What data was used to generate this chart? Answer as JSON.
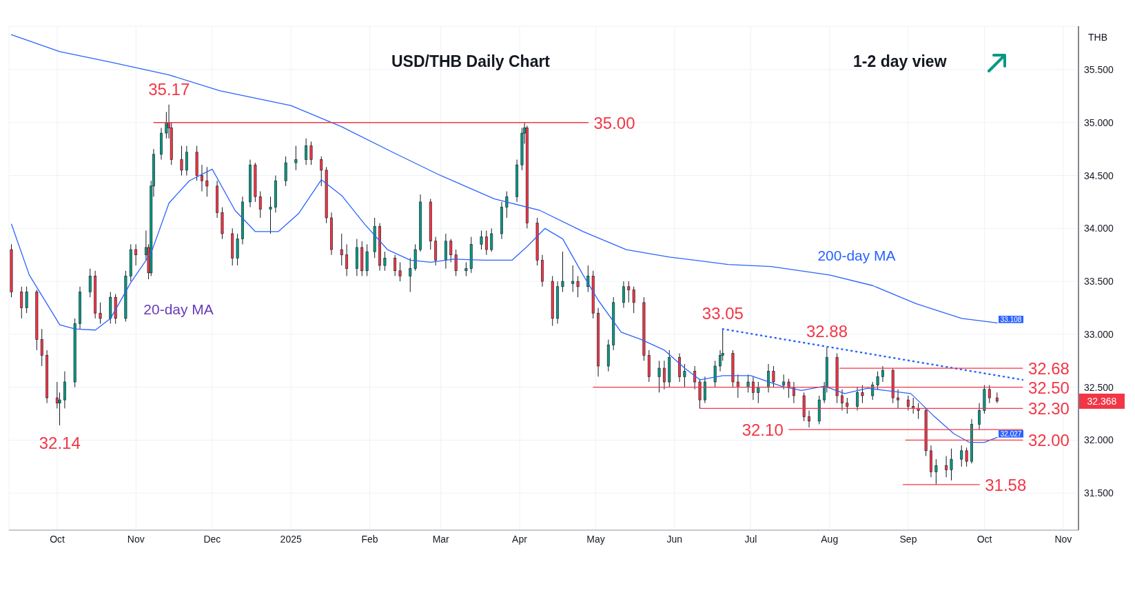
{
  "chart_data": {
    "type": "candlestick",
    "title": "USD/THB Daily Chart",
    "ylabel": "THB",
    "annotations": [
      "1-2 day view",
      {
        "text": "35.17",
        "x": "2024-11-14",
        "y": 35.17
      },
      {
        "text": "32.14",
        "x": "2024-10-02",
        "y": 32.14
      },
      {
        "text": "35.00",
        "x": "2025-04-28",
        "y": 35.0
      },
      {
        "text": "33.05",
        "x": "2025-06-20",
        "y": 33.05
      },
      {
        "text": "32.88",
        "x": "2025-07-31",
        "y": 32.88
      },
      {
        "text": "32.68",
        "x": "2025-10-16",
        "y": 32.68
      },
      {
        "text": "32.50",
        "x": "2025-10-16",
        "y": 32.5
      },
      {
        "text": "32.30",
        "x": "2025-10-16",
        "y": 32.3
      },
      {
        "text": "32.10",
        "x": "2025-07-16",
        "y": 32.1
      },
      {
        "text": "32.00",
        "x": "2025-10-16",
        "y": 32.0
      },
      {
        "text": "31.58",
        "x": "2025-09-29",
        "y": 31.58
      }
    ],
    "value_labels": [
      null,
      null,
      null,
      null,
      null,
      null,
      null,
      null,
      null,
      null,
      null,
      null,
      null,
      null,
      null,
      null,
      null,
      null,
      null,
      null,
      null,
      null,
      null,
      null,
      null,
      null,
      null,
      null,
      null,
      null,
      null,
      null,
      null,
      null,
      null,
      null,
      null,
      null,
      null,
      null,
      null,
      null,
      null,
      null,
      null,
      null,
      null,
      null,
      null,
      null,
      null,
      null,
      null,
      null,
      null,
      null,
      null,
      null,
      null,
      null,
      null,
      null,
      null,
      null,
      null,
      null,
      null,
      null,
      null,
      null,
      null,
      null,
      null,
      null,
      null,
      null,
      null,
      null,
      null,
      null,
      null,
      null,
      null,
      null,
      null,
      null,
      null,
      null,
      null,
      null,
      null,
      null,
      null,
      null,
      null,
      null,
      null,
      null,
      null,
      null,
      null,
      null,
      null,
      null,
      null,
      null,
      null,
      null,
      null,
      null,
      null,
      null,
      null,
      null,
      null,
      null,
      null,
      null,
      null,
      null,
      null,
      null,
      null,
      null,
      null,
      null,
      null,
      null,
      null,
      null,
      null,
      null,
      null,
      null,
      null,
      null,
      null,
      null,
      null,
      null,
      null,
      null,
      null,
      null,
      null,
      "32.368"
    ],
    "x": [
      "2024-09-13",
      "2024-09-17",
      "2024-09-19",
      "2024-09-23",
      "2024-09-25",
      "2024-09-27",
      "2024-10-01",
      "2024-10-02",
      "2024-10-04",
      "2024-10-08",
      "2024-10-10",
      "2024-10-14",
      "2024-10-16",
      "2024-10-18",
      "2024-10-22",
      "2024-10-24",
      "2024-10-28",
      "2024-10-30",
      "2024-11-01",
      "2024-11-05",
      "2024-11-06",
      "2024-11-07",
      "2024-11-08",
      "2024-11-11",
      "2024-11-13",
      "2024-11-14",
      "2024-11-15",
      "2024-11-19",
      "2024-11-21",
      "2024-11-25",
      "2024-11-27",
      "2024-11-29",
      "2024-12-03",
      "2024-12-05",
      "2024-12-09",
      "2024-12-11",
      "2024-12-13",
      "2024-12-16",
      "2024-12-18",
      "2024-12-20",
      "2024-12-24",
      "2024-12-26",
      "2024-12-30",
      "2025-01-03",
      "2025-01-07",
      "2025-01-09",
      "2025-01-13",
      "2025-01-15",
      "2025-01-17",
      "2025-01-21",
      "2025-01-23",
      "2025-01-27",
      "2025-01-29",
      "2025-01-31",
      "2025-02-03",
      "2025-02-05",
      "2025-02-07",
      "2025-02-11",
      "2025-02-13",
      "2025-02-17",
      "2025-02-19",
      "2025-02-21",
      "2025-02-25",
      "2025-02-27",
      "2025-03-03",
      "2025-03-05",
      "2025-03-07",
      "2025-03-11",
      "2025-03-13",
      "2025-03-17",
      "2025-03-19",
      "2025-03-21",
      "2025-03-25",
      "2025-03-27",
      "2025-03-31",
      "2025-04-02",
      "2025-04-03",
      "2025-04-04",
      "2025-04-08",
      "2025-04-10",
      "2025-04-14",
      "2025-04-16",
      "2025-04-18",
      "2025-04-22",
      "2025-04-24",
      "2025-04-28",
      "2025-04-30",
      "2025-05-02",
      "2025-05-06",
      "2025-05-08",
      "2025-05-12",
      "2025-05-14",
      "2025-05-16",
      "2025-05-20",
      "2025-05-22",
      "2025-05-26",
      "2025-05-28",
      "2025-05-30",
      "2025-06-03",
      "2025-06-05",
      "2025-06-09",
      "2025-06-11",
      "2025-06-13",
      "2025-06-17",
      "2025-06-19",
      "2025-06-20",
      "2025-06-24",
      "2025-06-26",
      "2025-06-30",
      "2025-07-02",
      "2025-07-04",
      "2025-07-08",
      "2025-07-10",
      "2025-07-14",
      "2025-07-16",
      "2025-07-18",
      "2025-07-22",
      "2025-07-24",
      "2025-07-28",
      "2025-07-30",
      "2025-07-31",
      "2025-08-04",
      "2025-08-06",
      "2025-08-08",
      "2025-08-12",
      "2025-08-14",
      "2025-08-18",
      "2025-08-20",
      "2025-08-22",
      "2025-08-26",
      "2025-08-28",
      "2025-09-01",
      "2025-09-03",
      "2025-09-05",
      "2025-09-08",
      "2025-09-10",
      "2025-09-12",
      "2025-09-16",
      "2025-09-18",
      "2025-09-22",
      "2025-09-24",
      "2025-09-26",
      "2025-09-29",
      "2025-10-01",
      "2025-10-03",
      "2025-10-06"
    ],
    "ohlc": [
      [
        33.8,
        33.85,
        33.35,
        33.4
      ],
      [
        33.4,
        33.45,
        33.15,
        33.25
      ],
      [
        33.25,
        33.45,
        33.2,
        33.4
      ],
      [
        33.4,
        33.42,
        32.85,
        32.95
      ],
      [
        32.95,
        33.05,
        32.7,
        32.8
      ],
      [
        32.8,
        32.85,
        32.35,
        32.4
      ],
      [
        32.4,
        32.55,
        32.3,
        32.35
      ],
      [
        32.35,
        32.45,
        32.14,
        32.38
      ],
      [
        32.38,
        32.65,
        32.3,
        32.55
      ],
      [
        32.55,
        33.15,
        32.5,
        33.1
      ],
      [
        33.1,
        33.45,
        33.05,
        33.4
      ],
      [
        33.4,
        33.62,
        33.35,
        33.55
      ],
      [
        33.55,
        33.6,
        33.15,
        33.2
      ],
      [
        33.2,
        33.3,
        33.1,
        33.15
      ],
      [
        33.15,
        33.4,
        33.1,
        33.35
      ],
      [
        33.35,
        33.38,
        33.1,
        33.15
      ],
      [
        33.15,
        33.6,
        33.12,
        33.55
      ],
      [
        33.55,
        33.85,
        33.5,
        33.8
      ],
      [
        33.8,
        33.85,
        33.65,
        33.75
      ],
      [
        33.75,
        33.98,
        33.7,
        33.82
      ],
      [
        33.82,
        33.85,
        33.52,
        33.58
      ],
      [
        33.58,
        34.45,
        33.55,
        34.4
      ],
      [
        34.4,
        34.75,
        34.3,
        34.7
      ],
      [
        34.7,
        34.95,
        34.65,
        34.9
      ],
      [
        34.9,
        35.1,
        34.85,
        35.0
      ],
      [
        35.0,
        35.17,
        34.85,
        34.95
      ],
      [
        34.95,
        35.0,
        34.6,
        34.65
      ],
      [
        34.65,
        34.78,
        34.5,
        34.55
      ],
      [
        34.55,
        34.78,
        34.5,
        34.72
      ],
      [
        34.72,
        34.78,
        34.45,
        34.5
      ],
      [
        34.5,
        34.6,
        34.35,
        34.45
      ],
      [
        34.45,
        34.58,
        34.3,
        34.4
      ],
      [
        34.4,
        34.45,
        34.1,
        34.15
      ],
      [
        34.15,
        34.2,
        33.9,
        33.95
      ],
      [
        33.95,
        34.0,
        33.65,
        33.72
      ],
      [
        33.72,
        33.95,
        33.65,
        33.9
      ],
      [
        33.9,
        34.3,
        33.85,
        34.25
      ],
      [
        34.25,
        34.65,
        34.2,
        34.6
      ],
      [
        34.6,
        34.62,
        34.25,
        34.3
      ],
      [
        34.3,
        34.35,
        34.1,
        34.18
      ],
      [
        34.18,
        34.3,
        33.95,
        34.2
      ],
      [
        34.2,
        34.5,
        34.15,
        34.45
      ],
      [
        34.45,
        34.68,
        34.4,
        34.62
      ],
      [
        34.62,
        34.78,
        34.55,
        34.65
      ],
      [
        34.65,
        34.85,
        34.6,
        34.78
      ],
      [
        34.78,
        34.82,
        34.6,
        34.65
      ],
      [
        34.65,
        34.68,
        34.4,
        34.55
      ],
      [
        34.55,
        34.58,
        34.05,
        34.1
      ],
      [
        34.1,
        34.15,
        33.75,
        33.8
      ],
      [
        33.8,
        33.95,
        33.65,
        33.75
      ],
      [
        33.75,
        33.85,
        33.55,
        33.62
      ],
      [
        33.62,
        33.9,
        33.55,
        33.82
      ],
      [
        33.82,
        33.88,
        33.55,
        33.6
      ],
      [
        33.6,
        33.85,
        33.55,
        33.78
      ],
      [
        33.78,
        34.1,
        33.72,
        34.02
      ],
      [
        34.02,
        34.05,
        33.6,
        33.65
      ],
      [
        33.65,
        33.78,
        33.6,
        33.72
      ],
      [
        33.72,
        33.75,
        33.55,
        33.6
      ],
      [
        33.6,
        33.68,
        33.5,
        33.55
      ],
      [
        33.55,
        33.72,
        33.4,
        33.62
      ],
      [
        33.62,
        33.85,
        33.6,
        33.8
      ],
      [
        33.8,
        34.32,
        33.78,
        34.25
      ],
      [
        34.25,
        34.28,
        33.8,
        33.88
      ],
      [
        33.88,
        33.92,
        33.65,
        33.7
      ],
      [
        33.7,
        33.95,
        33.62,
        33.88
      ],
      [
        33.88,
        33.9,
        33.68,
        33.75
      ],
      [
        33.75,
        33.8,
        33.55,
        33.6
      ],
      [
        33.6,
        33.68,
        33.55,
        33.62
      ],
      [
        33.62,
        33.92,
        33.58,
        33.85
      ],
      [
        33.85,
        33.98,
        33.8,
        33.92
      ],
      [
        33.92,
        33.98,
        33.75,
        33.8
      ],
      [
        33.8,
        34.0,
        33.78,
        33.95
      ],
      [
        33.95,
        34.25,
        33.9,
        34.2
      ],
      [
        34.2,
        34.35,
        34.1,
        34.3
      ],
      [
        34.3,
        34.65,
        34.25,
        34.6
      ],
      [
        34.6,
        34.95,
        34.55,
        34.9
      ],
      [
        34.9,
        35.0,
        34.8,
        34.95
      ],
      [
        34.95,
        34.97,
        34.0,
        34.05
      ],
      [
        34.05,
        34.1,
        33.65,
        33.7
      ],
      [
        33.7,
        33.75,
        33.45,
        33.5
      ],
      [
        33.5,
        33.55,
        33.08,
        33.15
      ],
      [
        33.15,
        33.5,
        33.1,
        33.45
      ],
      [
        33.45,
        33.78,
        33.4,
        33.5
      ],
      [
        33.48,
        33.65,
        33.4,
        33.5
      ],
      [
        33.5,
        33.55,
        33.35,
        33.45
      ],
      [
        33.45,
        33.65,
        33.4,
        33.55
      ],
      [
        33.55,
        33.6,
        33.15,
        33.2
      ],
      [
        33.2,
        33.25,
        32.6,
        32.7
      ],
      [
        32.7,
        32.95,
        32.65,
        32.9
      ],
      [
        32.9,
        33.35,
        32.85,
        33.3
      ],
      [
        33.3,
        33.5,
        33.25,
        33.45
      ],
      [
        33.45,
        33.5,
        33.3,
        33.42
      ],
      [
        33.42,
        33.45,
        33.2,
        33.3
      ],
      [
        33.3,
        33.35,
        32.75,
        32.8
      ],
      [
        32.8,
        32.85,
        32.55,
        32.6
      ],
      [
        32.6,
        32.75,
        32.45,
        32.68
      ],
      [
        32.68,
        32.75,
        32.48,
        32.55
      ],
      [
        32.55,
        32.85,
        32.5,
        32.78
      ],
      [
        32.78,
        32.82,
        32.55,
        32.6
      ],
      [
        32.6,
        32.72,
        32.5,
        32.65
      ],
      [
        32.65,
        32.7,
        32.48,
        32.55
      ],
      [
        32.55,
        32.58,
        32.3,
        32.38
      ],
      [
        32.38,
        32.6,
        32.35,
        32.55
      ],
      [
        32.55,
        32.75,
        32.5,
        32.7
      ],
      [
        32.7,
        32.85,
        32.65,
        32.8
      ],
      [
        32.8,
        33.05,
        32.75,
        32.82
      ],
      [
        32.82,
        32.85,
        32.5,
        32.55
      ],
      [
        32.55,
        32.62,
        32.4,
        32.5
      ],
      [
        32.5,
        32.62,
        32.45,
        32.55
      ],
      [
        32.55,
        32.6,
        32.38,
        32.45
      ],
      [
        32.45,
        32.55,
        32.35,
        32.5
      ],
      [
        32.5,
        32.72,
        32.45,
        32.65
      ],
      [
        32.65,
        32.7,
        32.5,
        32.55
      ],
      [
        32.52,
        32.62,
        32.48,
        32.55
      ],
      [
        32.55,
        32.58,
        32.4,
        32.5
      ],
      [
        32.5,
        32.55,
        32.35,
        32.42
      ],
      [
        32.42,
        32.45,
        32.18,
        32.22
      ],
      [
        32.22,
        32.28,
        32.12,
        32.18
      ],
      [
        32.18,
        32.42,
        32.15,
        32.38
      ],
      [
        32.38,
        32.55,
        32.35,
        32.5
      ],
      [
        32.5,
        32.88,
        32.45,
        32.78
      ],
      [
        32.78,
        32.82,
        32.35,
        32.42
      ],
      [
        32.42,
        32.48,
        32.28,
        32.35
      ],
      [
        32.35,
        32.4,
        32.25,
        32.32
      ],
      [
        32.32,
        32.5,
        32.28,
        32.45
      ],
      [
        32.45,
        32.52,
        32.35,
        32.42
      ],
      [
        32.42,
        32.55,
        32.38,
        32.52
      ],
      [
        32.52,
        32.65,
        32.48,
        32.6
      ],
      [
        32.6,
        32.7,
        32.55,
        32.66
      ],
      [
        32.66,
        32.68,
        32.35,
        32.4
      ],
      [
        32.4,
        32.48,
        32.3,
        32.38
      ],
      [
        32.38,
        32.42,
        32.28,
        32.32
      ],
      [
        32.32,
        32.4,
        32.25,
        32.3
      ],
      [
        32.3,
        32.35,
        32.2,
        32.28
      ],
      [
        32.28,
        32.3,
        31.85,
        31.9
      ],
      [
        31.9,
        31.95,
        31.65,
        31.7
      ],
      [
        31.7,
        31.82,
        31.58,
        31.76
      ],
      [
        31.76,
        31.85,
        31.65,
        31.72
      ],
      [
        31.72,
        31.92,
        31.62,
        31.82
      ],
      [
        31.82,
        31.95,
        31.75,
        31.9
      ],
      [
        31.9,
        31.93,
        31.75,
        31.8
      ],
      [
        31.8,
        32.2,
        31.78,
        32.15
      ],
      [
        32.15,
        32.35,
        32.1,
        32.28
      ],
      [
        32.28,
        32.52,
        32.25,
        32.48
      ],
      [
        32.48,
        32.52,
        32.35,
        32.4
      ],
      [
        32.4,
        32.45,
        32.35,
        32.368
      ]
    ],
    "colors": [
      "#f23645",
      "#f23645",
      "#089981",
      "#f23645",
      "#f23645",
      "#f23645",
      "#f23645",
      "#089981",
      "#089981",
      "#089981",
      "#089981",
      "#089981",
      "#f23645",
      "#f23645",
      "#089981",
      "#f23645",
      "#089981",
      "#089981",
      "#f23645",
      "#089981",
      "#f23645",
      "#089981",
      "#089981",
      "#089981",
      "#089981",
      "#f23645",
      "#f23645",
      "#f23645",
      "#089981",
      "#f23645",
      "#f23645",
      "#f23645",
      "#f23645",
      "#f23645",
      "#f23645",
      "#089981",
      "#089981",
      "#089981",
      "#f23645",
      "#f23645",
      "#089981",
      "#089981",
      "#089981",
      "#089981",
      "#089981",
      "#f23645",
      "#f23645",
      "#f23645",
      "#f23645",
      "#f23645",
      "#f23645",
      "#089981",
      "#f23645",
      "#089981",
      "#089981",
      "#f23645",
      "#089981",
      "#f23645",
      "#f23645",
      "#089981",
      "#089981",
      "#089981",
      "#f23645",
      "#f23645",
      "#089981",
      "#f23645",
      "#f23645",
      "#089981",
      "#089981",
      "#089981",
      "#f23645",
      "#089981",
      "#089981",
      "#089981",
      "#089981",
      "#089981",
      "#089981",
      "#f23645",
      "#f23645",
      "#f23645",
      "#f23645",
      "#089981",
      "#089981",
      "#089981",
      "#f23645",
      "#089981",
      "#f23645",
      "#f23645",
      "#089981",
      "#089981",
      "#089981",
      "#f23645",
      "#f23645",
      "#f23645",
      "#f23645",
      "#089981",
      "#f23645",
      "#089981",
      "#f23645",
      "#089981",
      "#f23645",
      "#f23645",
      "#089981",
      "#089981",
      "#089981",
      "#089981",
      "#f23645",
      "#f23645",
      "#089981",
      "#f23645",
      "#089981",
      "#089981",
      "#f23645",
      "#089981",
      "#f23645",
      "#f23645",
      "#f23645",
      "#f23645",
      "#089981",
      "#089981",
      "#089981",
      "#f23645",
      "#f23645",
      "#f23645",
      "#089981",
      "#f23645",
      "#089981",
      "#089981",
      "#089981",
      "#f23645",
      "#f23645",
      "#f23645",
      "#f23645",
      "#f23645",
      "#f23645",
      "#f23645",
      "#089981",
      "#f23645",
      "#089981",
      "#089981",
      "#f23645",
      "#089981",
      "#089981",
      "#089981",
      "#f23645",
      "#f23645"
    ],
    "series": [
      {
        "type": "line",
        "name": "200-day MA",
        "color": "#2962ff",
        "x": [
          "2024-09-13",
          "2024-10-02",
          "2024-10-22",
          "2024-11-14",
          "2024-12-04",
          "2025-01-01",
          "2025-01-21",
          "2025-02-10",
          "2025-02-28",
          "2025-03-22",
          "2025-04-09",
          "2025-04-26",
          "2025-05-13",
          "2025-05-30",
          "2025-06-22",
          "2025-07-09",
          "2025-08-01",
          "2025-08-18",
          "2025-09-04",
          "2025-09-22",
          "2025-10-06"
        ],
        "values": [
          35.83,
          35.67,
          35.57,
          35.45,
          35.3,
          35.16,
          34.96,
          34.72,
          34.51,
          34.28,
          34.17,
          33.97,
          33.8,
          33.73,
          33.66,
          33.64,
          33.56,
          33.46,
          33.29,
          33.15,
          33.108
        ],
        "value_labels": [
          null,
          null,
          null,
          null,
          null,
          null,
          null,
          null,
          null,
          null,
          null,
          null,
          null,
          null,
          null,
          null,
          null,
          null,
          null,
          null,
          "33.108"
        ]
      },
      {
        "type": "line",
        "name": "20-day MA",
        "color": "#2962ff",
        "x": [
          "2024-09-13",
          "2024-09-20",
          "2024-10-02",
          "2024-10-08",
          "2024-10-16",
          "2024-10-22",
          "2024-10-30",
          "2024-11-07",
          "2024-11-14",
          "2024-11-22",
          "2024-12-01",
          "2024-12-10",
          "2024-12-18",
          "2024-12-27",
          "2025-01-04",
          "2025-01-13",
          "2025-01-21",
          "2025-01-30",
          "2025-02-08",
          "2025-02-17",
          "2025-02-25",
          "2025-03-06",
          "2025-03-18",
          "2025-03-29",
          "2025-04-04",
          "2025-04-11",
          "2025-04-18",
          "2025-04-26",
          "2025-05-02",
          "2025-05-11",
          "2025-05-19",
          "2025-05-28",
          "2025-06-05",
          "2025-06-11",
          "2025-06-20",
          "2025-07-01",
          "2025-07-13",
          "2025-07-21",
          "2025-07-30",
          "2025-08-07",
          "2025-08-16",
          "2025-08-23",
          "2025-09-02",
          "2025-09-11",
          "2025-09-19",
          "2025-09-25",
          "2025-10-01",
          "2025-10-06"
        ],
        "values": [
          34.04,
          33.56,
          33.09,
          33.05,
          33.04,
          33.15,
          33.49,
          33.77,
          34.24,
          34.45,
          34.56,
          34.17,
          33.97,
          33.97,
          34.14,
          34.46,
          34.31,
          34.04,
          33.8,
          33.7,
          33.68,
          33.71,
          33.7,
          33.7,
          33.83,
          34.0,
          33.9,
          33.56,
          33.32,
          33.02,
          32.95,
          32.85,
          32.68,
          32.57,
          32.61,
          32.61,
          32.51,
          32.47,
          32.51,
          32.44,
          32.49,
          32.47,
          32.44,
          32.23,
          32.06,
          31.98,
          31.98,
          32.027
        ],
        "value_labels": [
          null,
          null,
          null,
          null,
          null,
          null,
          null,
          null,
          null,
          null,
          null,
          null,
          null,
          null,
          null,
          null,
          null,
          null,
          null,
          null,
          null,
          null,
          null,
          null,
          null,
          null,
          null,
          null,
          null,
          null,
          null,
          null,
          null,
          null,
          null,
          null,
          null,
          null,
          null,
          null,
          null,
          null,
          null,
          null,
          null,
          null,
          null,
          "32.027"
        ]
      },
      {
        "type": "line",
        "color": "#2962ff",
        "line_style": "dotted",
        "x": [
          "2025-06-20",
          "2025-10-16"
        ],
        "values": [
          33.05,
          32.57
        ]
      },
      {
        "type": "line",
        "color": "#f23645",
        "x": [
          "2024-11-08",
          "2025-04-28"
        ],
        "values": [
          35.0,
          35.0
        ]
      },
      {
        "type": "line",
        "color": "#f23645",
        "x": [
          "2025-08-05",
          "2025-10-16"
        ],
        "values": [
          32.68,
          32.68
        ]
      },
      {
        "type": "line",
        "color": "#f23645",
        "x": [
          "2025-04-30",
          "2025-10-16"
        ],
        "values": [
          32.5,
          32.5
        ]
      },
      {
        "type": "line",
        "color": "#f23645",
        "x": [
          "2025-06-11",
          "2025-10-16"
        ],
        "values": [
          32.3,
          32.3
        ]
      },
      {
        "type": "line",
        "color": "#f23645",
        "x": [
          "2025-07-16",
          "2025-10-16"
        ],
        "values": [
          32.1,
          32.1
        ]
      },
      {
        "type": "line",
        "color": "#f23645",
        "x": [
          "2025-08-31",
          "2025-10-16"
        ],
        "values": [
          32.0,
          32.0
        ]
      },
      {
        "type": "line",
        "color": "#f23645",
        "x": [
          "2025-08-30",
          "2025-09-29"
        ],
        "values": [
          31.58,
          31.58
        ]
      }
    ],
    "xlim": [
      "2024-09-12",
      "2025-11-07"
    ],
    "xticks": [
      {
        "value": "2024-10-01",
        "label": "Oct"
      },
      {
        "value": "2024-11-01",
        "label": "Nov"
      },
      {
        "value": "2024-12-01",
        "label": "Dec"
      },
      {
        "value": "2025-01-01",
        "label": "2025"
      },
      {
        "value": "2025-02-01",
        "label": "Feb"
      },
      {
        "value": "2025-03-01",
        "label": "Mar"
      },
      {
        "value": "2025-04-01",
        "label": "Apr"
      },
      {
        "value": "2025-05-01",
        "label": "May"
      },
      {
        "value": "2025-06-01",
        "label": "Jun"
      },
      {
        "value": "2025-07-01",
        "label": "Jul"
      },
      {
        "value": "2025-08-01",
        "label": "Aug"
      },
      {
        "value": "2025-09-01",
        "label": "Sep"
      },
      {
        "value": "2025-10-01",
        "label": "Oct"
      },
      {
        "value": "2025-11-01",
        "label": "Nov"
      }
    ],
    "ylim": [
      31.15,
      35.91
    ],
    "yticks": [
      {
        "value": 31.5,
        "label": "31.500"
      },
      {
        "value": 32.0,
        "label": "32.000"
      },
      {
        "value": 32.5,
        "label": "32.500"
      },
      {
        "value": 33.0,
        "label": "33.000"
      },
      {
        "value": 33.5,
        "label": "33.500"
      },
      {
        "value": 34.0,
        "label": "34.000"
      },
      {
        "value": 34.5,
        "label": "34.500"
      },
      {
        "value": 35.0,
        "label": "35.000"
      },
      {
        "value": 35.5,
        "label": "35.500"
      }
    ],
    "grid": true
  }
}
